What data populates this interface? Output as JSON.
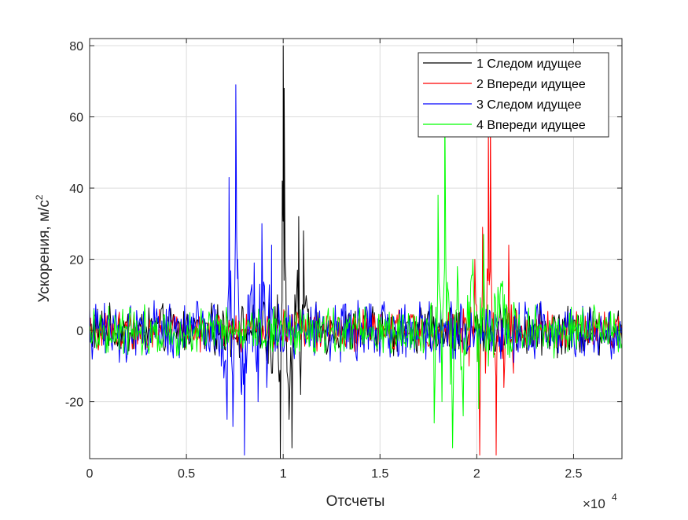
{
  "chart_data": {
    "type": "line",
    "title": "",
    "xlabel": "Отсчеты",
    "ylabel": "Ускорения, м/с",
    "ylabel_superscript": "2",
    "x_exponent_label": "×10",
    "x_exponent_power": "4",
    "xlim": [
      0,
      27500
    ],
    "ylim": [
      -36,
      82
    ],
    "xticks": [
      0,
      5000,
      10000,
      15000,
      20000,
      25000
    ],
    "xtick_labels": [
      "0",
      "0.5",
      "1",
      "1.5",
      "2",
      "2.5"
    ],
    "yticks": [
      -20,
      0,
      20,
      40,
      60,
      80
    ],
    "ytick_labels": [
      "-20",
      "0",
      "20",
      "40",
      "60",
      "80"
    ],
    "grid": true,
    "legend_position": "top-right",
    "series": [
      {
        "name": "1 Следом идущее",
        "color": "#000000",
        "noise_amplitude": 5,
        "bursts": [
          {
            "x": [
              9000,
              9400,
              9700,
              9850,
              9950,
              10000,
              10050,
              10150,
              10300,
              10450,
              10600,
              10800,
              10900,
              11050,
              11300
            ],
            "y": [
              8,
              -12,
              10,
              -36,
              42,
              80,
              68,
              5,
              -25,
              -33,
              10,
              32,
              -18,
              28,
              6
            ]
          }
        ]
      },
      {
        "name": "2 Впереди идущее",
        "color": "#ff0000",
        "noise_amplitude": 4,
        "bursts": [
          {
            "x": [
              19600,
              19900,
              20150,
              20300,
              20450,
              20600,
              20700,
              20850,
              21000,
              21100,
              21400,
              21650,
              21900
            ],
            "y": [
              -10,
              20,
              -35,
              29,
              -12,
              58,
              64,
              5,
              -35,
              2,
              -16,
              24,
              -12
            ]
          }
        ]
      },
      {
        "name": "3 Следом идущее",
        "color": "#0000ff",
        "noise_amplitude": 6,
        "bursts": [
          {
            "x": [
              6800,
              7100,
              7200,
              7400,
              7550,
              7650,
              7850,
              8000,
              8200,
              8500,
              8700,
              8900,
              9150,
              9400
            ],
            "y": [
              -10,
              -25,
              43,
              -27,
              69,
              20,
              -18,
              -35,
              10,
              19,
              -20,
              30,
              -16,
              24
            ]
          }
        ]
      },
      {
        "name": "4 Впереди идущее",
        "color": "#00ff00",
        "noise_amplitude": 5,
        "bursts": [
          {
            "x": [
              17600,
              17800,
              18000,
              18200,
              18350,
              18500,
              18750,
              19000,
              19300,
              19600,
              19800,
              20100,
              20350,
              20600,
              21200,
              22000
            ],
            "y": [
              6,
              -26,
              38,
              -20,
              66,
              12,
              -33,
              18,
              -24,
              8,
              20,
              -22,
              27,
              -10,
              10,
              4
            ]
          }
        ]
      }
    ]
  }
}
